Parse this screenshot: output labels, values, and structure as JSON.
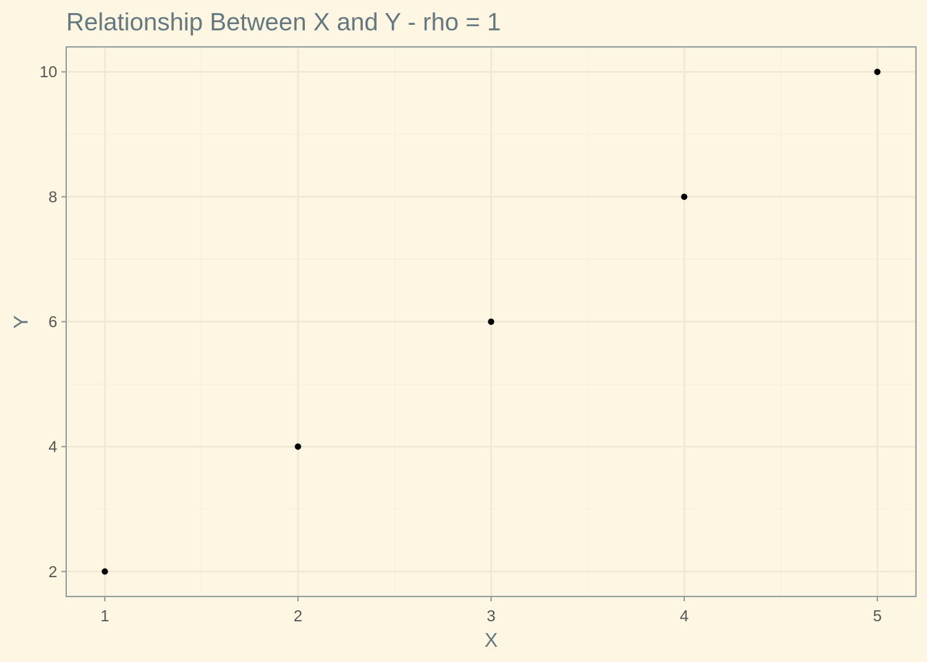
{
  "chart_data": {
    "type": "scatter",
    "title": "Relationship Between X and Y - rho = 1",
    "xlabel": "X",
    "ylabel": "Y",
    "x": [
      1,
      2,
      3,
      4,
      5
    ],
    "y": [
      2,
      4,
      6,
      8,
      10
    ],
    "xlim": [
      0.8,
      5.2
    ],
    "ylim": [
      1.6,
      10.4
    ],
    "x_ticks": [
      1,
      2,
      3,
      4,
      5
    ],
    "x_tick_labels": [
      "1",
      "2",
      "3",
      "4",
      "5"
    ],
    "y_ticks": [
      2,
      4,
      6,
      8,
      10
    ],
    "y_tick_labels": [
      "2",
      "4",
      "6",
      "8",
      "10"
    ],
    "x_minor_ticks": [
      1.5,
      2.5,
      3.5,
      4.5
    ],
    "y_minor_ticks": [
      3,
      5,
      7,
      9
    ],
    "grid": true,
    "legend": "none",
    "colors": {
      "background": "#fdf6e3",
      "panel_border": "#93a1a1",
      "grid_major": "#eee8d5",
      "grid_minor": "#f4efdc",
      "point": "#000000",
      "title": "#65787f",
      "tick_text": "#555555"
    }
  }
}
